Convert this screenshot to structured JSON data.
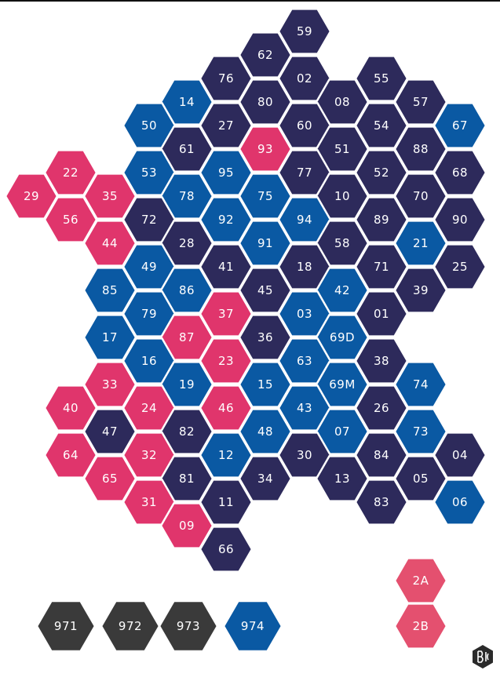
{
  "departments": [
    {
      "code": "59",
      "color": "#2d2a5b"
    },
    {
      "code": "62",
      "color": "#2d2a5b"
    },
    {
      "code": "76",
      "color": "#2d2a5b"
    },
    {
      "code": "02",
      "color": "#2d2a5b"
    },
    {
      "code": "55",
      "color": "#2d2a5b"
    },
    {
      "code": "14",
      "color": "#0a59a3"
    },
    {
      "code": "80",
      "color": "#2d2a5b"
    },
    {
      "code": "08",
      "color": "#2d2a5b"
    },
    {
      "code": "57",
      "color": "#2d2a5b"
    },
    {
      "code": "50",
      "color": "#0a59a3"
    },
    {
      "code": "27",
      "color": "#2d2a5b"
    },
    {
      "code": "60",
      "color": "#2d2a5b"
    },
    {
      "code": "54",
      "color": "#2d2a5b"
    },
    {
      "code": "67",
      "color": "#0a59a3"
    },
    {
      "code": "61",
      "color": "#2d2a5b"
    },
    {
      "code": "93",
      "color": "#e0356c"
    },
    {
      "code": "51",
      "color": "#2d2a5b"
    },
    {
      "code": "88",
      "color": "#2d2a5b"
    },
    {
      "code": "22",
      "color": "#e0356c"
    },
    {
      "code": "53",
      "color": "#0a59a3"
    },
    {
      "code": "95",
      "color": "#0a59a3"
    },
    {
      "code": "77",
      "color": "#2d2a5b"
    },
    {
      "code": "52",
      "color": "#2d2a5b"
    },
    {
      "code": "68",
      "color": "#2d2a5b"
    },
    {
      "code": "29",
      "color": "#e0356c"
    },
    {
      "code": "35",
      "color": "#e0356c"
    },
    {
      "code": "78",
      "color": "#0a59a3"
    },
    {
      "code": "75",
      "color": "#0a59a3"
    },
    {
      "code": "10",
      "color": "#2d2a5b"
    },
    {
      "code": "70",
      "color": "#2d2a5b"
    },
    {
      "code": "56",
      "color": "#e0356c"
    },
    {
      "code": "72",
      "color": "#2d2a5b"
    },
    {
      "code": "92",
      "color": "#0a59a3"
    },
    {
      "code": "94",
      "color": "#0a59a3"
    },
    {
      "code": "89",
      "color": "#2d2a5b"
    },
    {
      "code": "90",
      "color": "#2d2a5b"
    },
    {
      "code": "44",
      "color": "#e0356c"
    },
    {
      "code": "28",
      "color": "#2d2a5b"
    },
    {
      "code": "91",
      "color": "#0a59a3"
    },
    {
      "code": "58",
      "color": "#2d2a5b"
    },
    {
      "code": "21",
      "color": "#0a59a3"
    },
    {
      "code": "49",
      "color": "#0a59a3"
    },
    {
      "code": "41",
      "color": "#2d2a5b"
    },
    {
      "code": "18",
      "color": "#2d2a5b"
    },
    {
      "code": "71",
      "color": "#2d2a5b"
    },
    {
      "code": "25",
      "color": "#2d2a5b"
    },
    {
      "code": "85",
      "color": "#0a59a3"
    },
    {
      "code": "86",
      "color": "#0a59a3"
    },
    {
      "code": "45",
      "color": "#2d2a5b"
    },
    {
      "code": "42",
      "color": "#0a59a3"
    },
    {
      "code": "39",
      "color": "#2d2a5b"
    },
    {
      "code": "79",
      "color": "#0a59a3"
    },
    {
      "code": "37",
      "color": "#e0356c"
    },
    {
      "code": "03",
      "color": "#0a59a3"
    },
    {
      "code": "01",
      "color": "#2d2a5b"
    },
    {
      "code": "17",
      "color": "#0a59a3"
    },
    {
      "code": "87",
      "color": "#e0356c"
    },
    {
      "code": "36",
      "color": "#2d2a5b"
    },
    {
      "code": "69D",
      "color": "#0a59a3"
    },
    {
      "code": "16",
      "color": "#0a59a3"
    },
    {
      "code": "23",
      "color": "#e0356c"
    },
    {
      "code": "63",
      "color": "#0a59a3"
    },
    {
      "code": "38",
      "color": "#2d2a5b"
    },
    {
      "code": "33",
      "color": "#e0356c"
    },
    {
      "code": "19",
      "color": "#0a59a3"
    },
    {
      "code": "15",
      "color": "#0a59a3"
    },
    {
      "code": "69M",
      "color": "#0a59a3"
    },
    {
      "code": "74",
      "color": "#0a59a3"
    },
    {
      "code": "40",
      "color": "#e0356c"
    },
    {
      "code": "24",
      "color": "#e0356c"
    },
    {
      "code": "46",
      "color": "#e0356c"
    },
    {
      "code": "43",
      "color": "#0a59a3"
    },
    {
      "code": "26",
      "color": "#2d2a5b"
    },
    {
      "code": "47",
      "color": "#2d2a5b"
    },
    {
      "code": "82",
      "color": "#2d2a5b"
    },
    {
      "code": "48",
      "color": "#0a59a3"
    },
    {
      "code": "07",
      "color": "#0a59a3"
    },
    {
      "code": "73",
      "color": "#0a59a3"
    },
    {
      "code": "64",
      "color": "#e0356c"
    },
    {
      "code": "32",
      "color": "#e0356c"
    },
    {
      "code": "12",
      "color": "#0a59a3"
    },
    {
      "code": "30",
      "color": "#2d2a5b"
    },
    {
      "code": "84",
      "color": "#2d2a5b"
    },
    {
      "code": "04",
      "color": "#2d2a5b"
    },
    {
      "code": "65",
      "color": "#e0356c"
    },
    {
      "code": "81",
      "color": "#2d2a5b"
    },
    {
      "code": "34",
      "color": "#2d2a5b"
    },
    {
      "code": "13",
      "color": "#2d2a5b"
    },
    {
      "code": "05",
      "color": "#2d2a5b"
    },
    {
      "code": "31",
      "color": "#e0356c"
    },
    {
      "code": "11",
      "color": "#2d2a5b"
    },
    {
      "code": "83",
      "color": "#2d2a5b"
    },
    {
      "code": "06",
      "color": "#0a59a3"
    },
    {
      "code": "09",
      "color": "#e0356c"
    },
    {
      "code": "66",
      "color": "#2d2a5b"
    },
    {
      "code": "2A",
      "color": "#e4506f"
    },
    {
      "code": "2B",
      "color": "#e4506f"
    }
  ],
  "overseas": [
    {
      "code": "971",
      "color": "#3a3a3a"
    },
    {
      "code": "972",
      "color": "#3a3a3a"
    },
    {
      "code": "973",
      "color": "#3a3a3a"
    },
    {
      "code": "974",
      "color": "#0a59a3"
    }
  ]
}
